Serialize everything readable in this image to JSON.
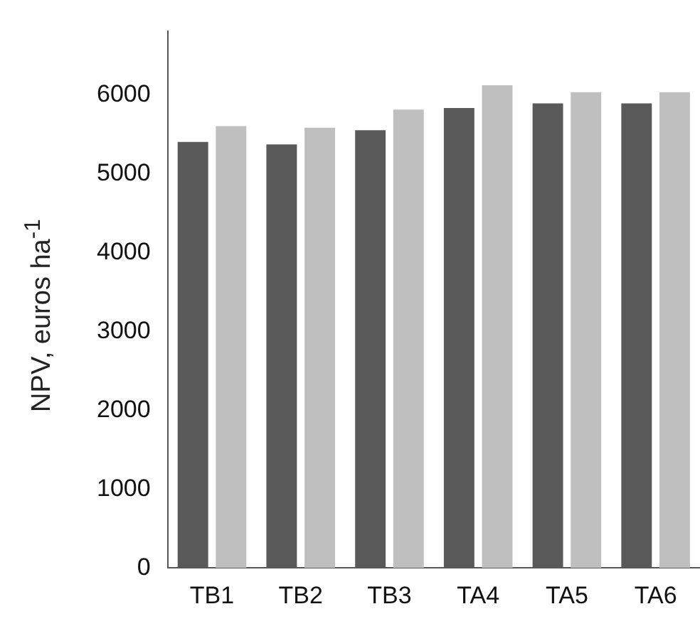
{
  "chart_data": {
    "type": "bar",
    "ylabel": "NPV, euros ha$^{-1}$",
    "categories": [
      "TB1",
      "TB2",
      "TB3",
      "TA4",
      "TA5",
      "TA6"
    ],
    "series": [
      {
        "color": "#595959",
        "values": [
          5400,
          5370,
          5550,
          5830,
          5890,
          5890
        ]
      },
      {
        "color": "#bfbfbf",
        "values": [
          5600,
          5580,
          5810,
          6120,
          6030,
          6030
        ]
      }
    ],
    "ylim": [
      0,
      6800
    ],
    "yticks": [
      0,
      1000,
      2000,
      3000,
      4000,
      5000,
      6000
    ],
    "grid": false,
    "legend": false
  }
}
